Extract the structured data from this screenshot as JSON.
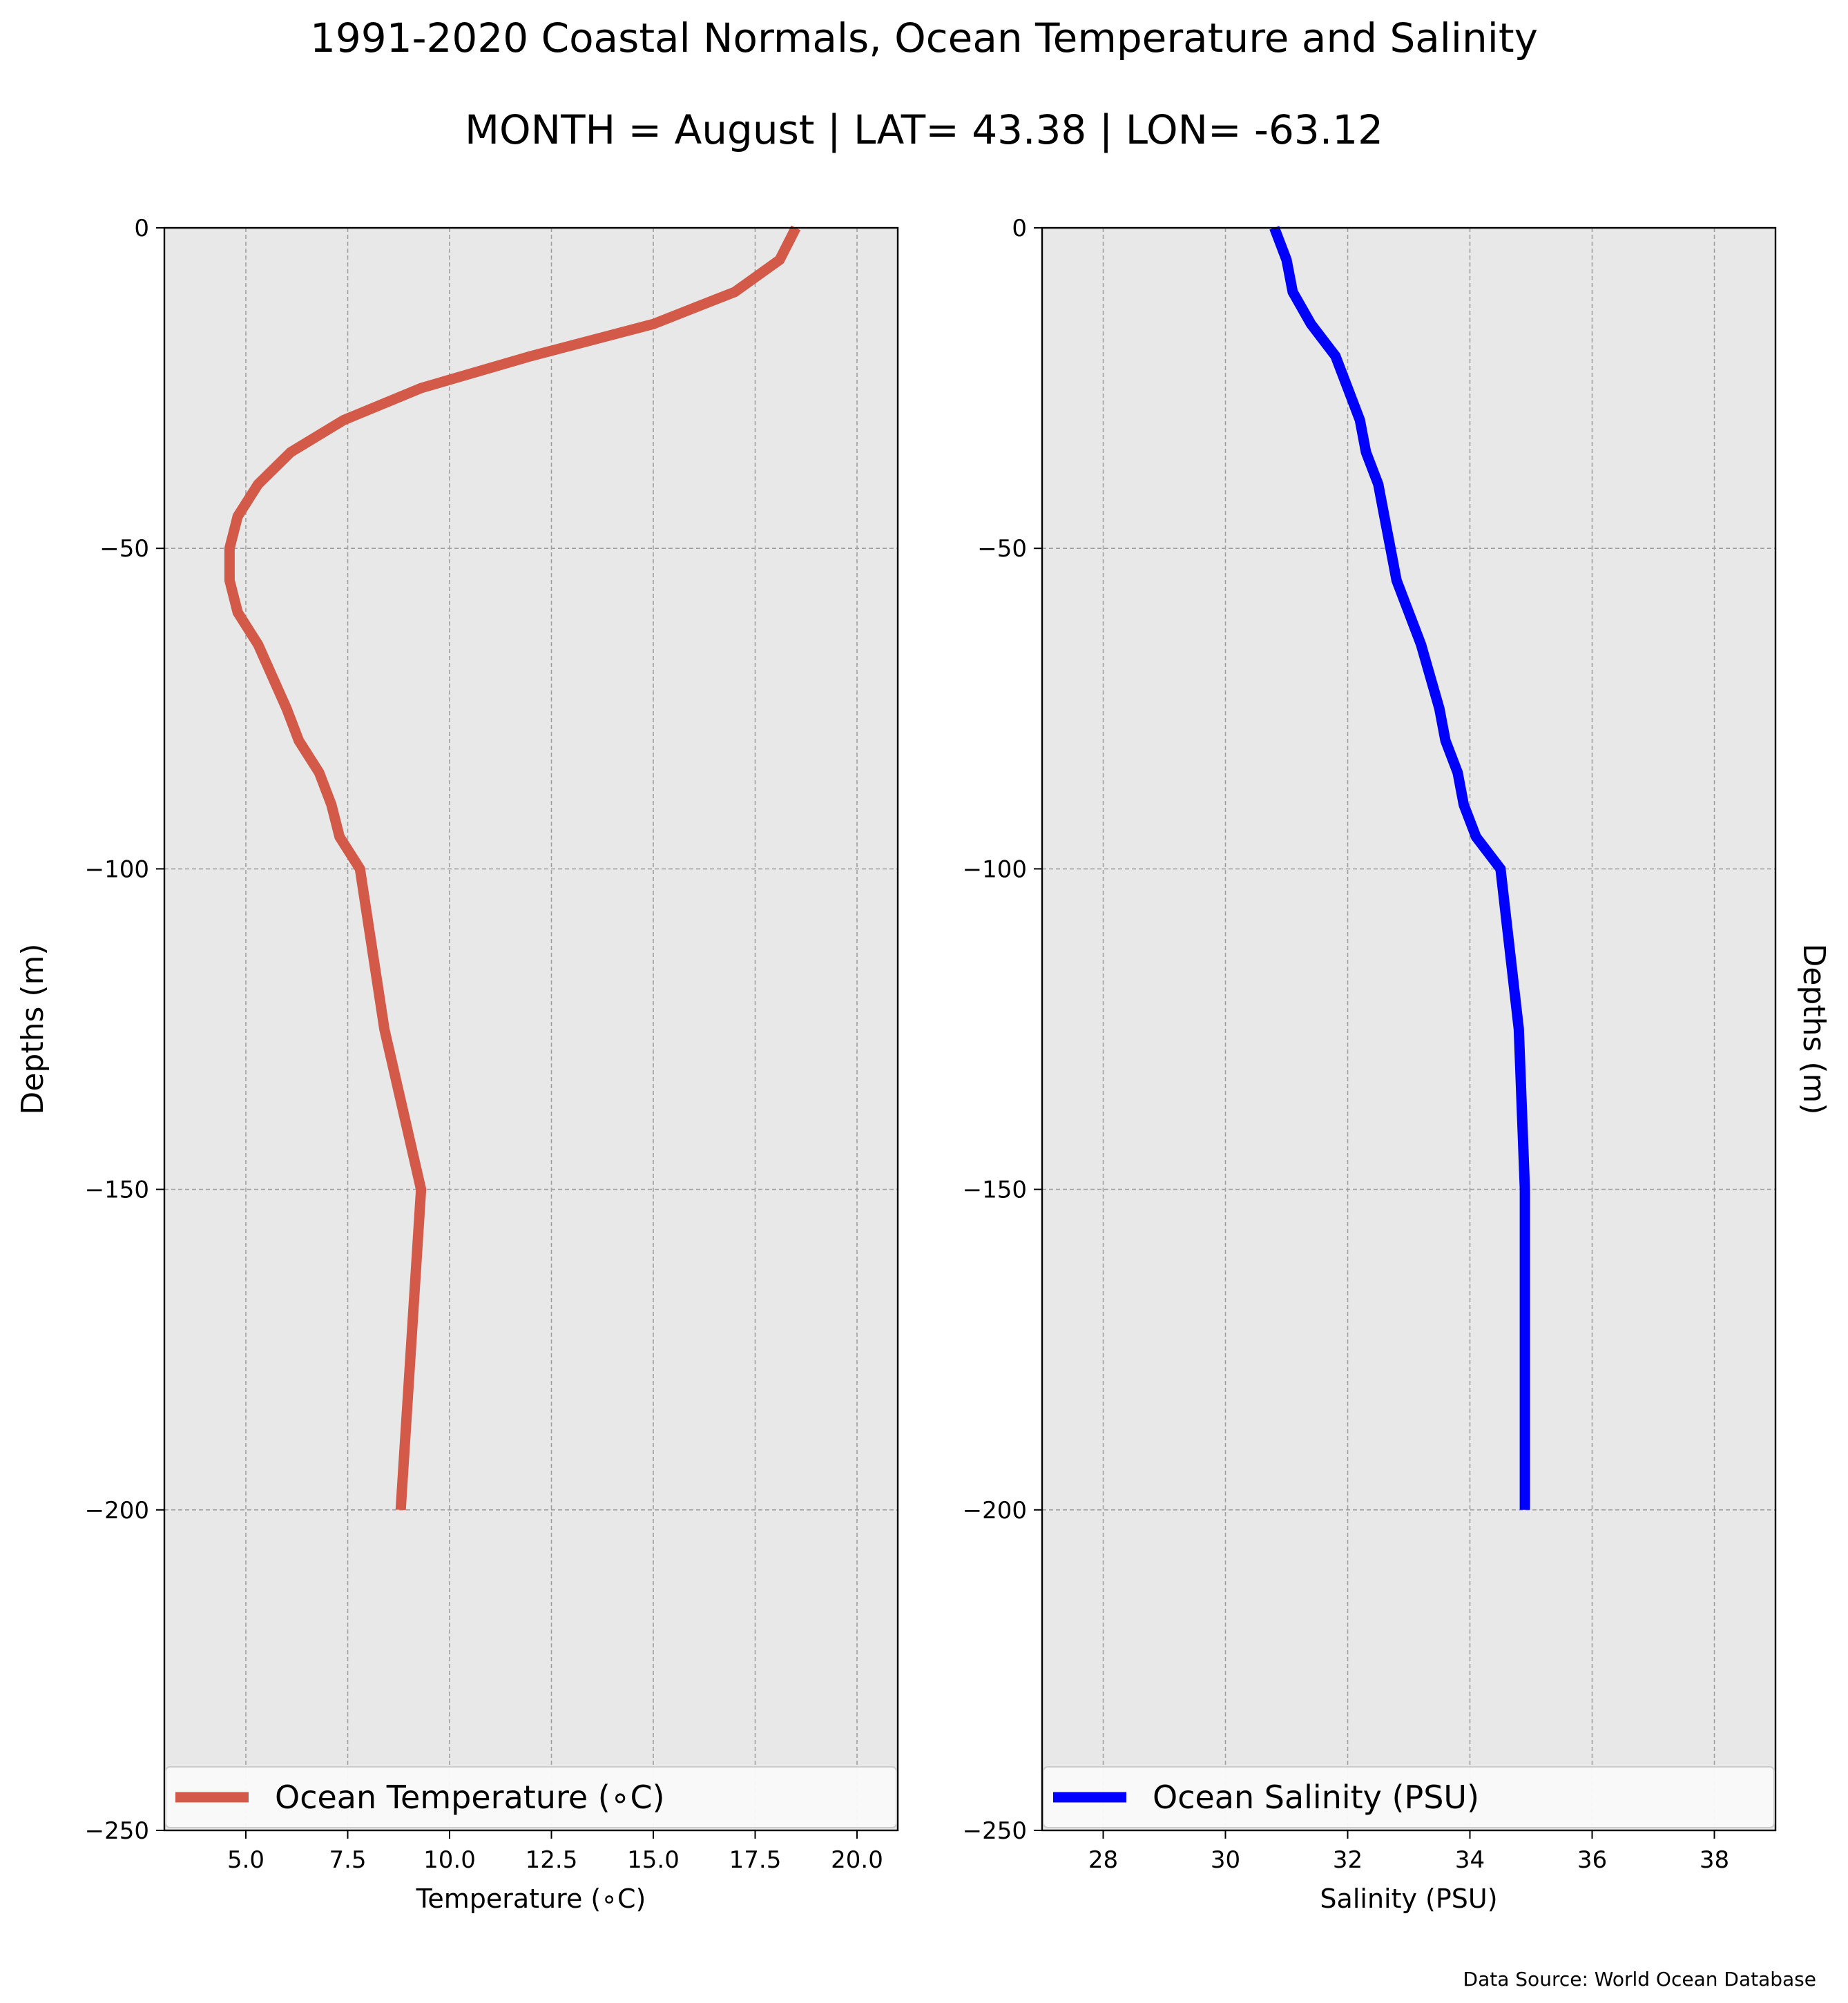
{
  "title": "1991-2020 Coastal Normals, Ocean Temperature and Salinity",
  "subtitle": "MONTH = August | LAT= 43.38 | LON= -63.12",
  "source_note": "Data Source: World Ocean Database",
  "chart_data": [
    {
      "type": "line",
      "xlabel": "Temperature ($^\\circ$C)",
      "xlabel_display": "Temperature (∘C)",
      "ylabel": "Depths (m)",
      "xlim": [
        3,
        21
      ],
      "ylim": [
        -250,
        0
      ],
      "xticks": [
        5.0,
        7.5,
        10.0,
        12.5,
        15.0,
        17.5,
        20.0
      ],
      "xtick_labels": [
        "5.0",
        "7.5",
        "10.0",
        "12.5",
        "15.0",
        "17.5",
        "20.0"
      ],
      "yticks": [
        0,
        -50,
        -100,
        -150,
        -200,
        -250
      ],
      "ytick_labels": [
        "0",
        "−50",
        "−100",
        "−150",
        "−200",
        "−250"
      ],
      "grid": true,
      "legend_position": "bottom",
      "series": [
        {
          "name": "Ocean Temperature (∘C)",
          "color": "#d35a49",
          "x": [
            18.5,
            18.1,
            17.0,
            15.0,
            12.0,
            9.3,
            7.4,
            6.1,
            5.3,
            4.8,
            4.6,
            4.6,
            4.8,
            5.3,
            6.0,
            6.3,
            6.8,
            7.1,
            7.3,
            7.8,
            8.4,
            9.3,
            8.8
          ],
          "y": [
            0,
            -5,
            -10,
            -15,
            -20,
            -25,
            -30,
            -35,
            -40,
            -45,
            -50,
            -55,
            -60,
            -65,
            -75,
            -80,
            -85,
            -90,
            -95,
            -100,
            -125,
            -150,
            -200
          ]
        }
      ]
    },
    {
      "type": "line",
      "xlabel": "Salinity (PSU)",
      "ylabel": "Depths (m)",
      "xlim": [
        27,
        39
      ],
      "ylim": [
        -250,
        0
      ],
      "xticks": [
        28,
        30,
        32,
        34,
        36,
        38
      ],
      "xtick_labels": [
        "28",
        "30",
        "32",
        "34",
        "36",
        "38"
      ],
      "yticks": [
        0,
        -50,
        -100,
        -150,
        -200,
        -250
      ],
      "ytick_labels": [
        "0",
        "−50",
        "−100",
        "−150",
        "−200",
        "−250"
      ],
      "grid": true,
      "legend_position": "bottom",
      "series": [
        {
          "name": "Ocean Salinity (PSU)",
          "color": "#0000ff",
          "x": [
            30.8,
            31.0,
            31.1,
            31.4,
            31.8,
            32.0,
            32.2,
            32.3,
            32.5,
            32.6,
            32.7,
            32.8,
            33.0,
            33.2,
            33.5,
            33.6,
            33.8,
            33.9,
            34.1,
            34.5,
            34.8,
            34.9,
            34.9
          ],
          "y": [
            0,
            -5,
            -10,
            -15,
            -20,
            -25,
            -30,
            -35,
            -40,
            -45,
            -50,
            -55,
            -60,
            -65,
            -75,
            -80,
            -85,
            -90,
            -95,
            -100,
            -125,
            -150,
            -200
          ]
        }
      ]
    }
  ]
}
